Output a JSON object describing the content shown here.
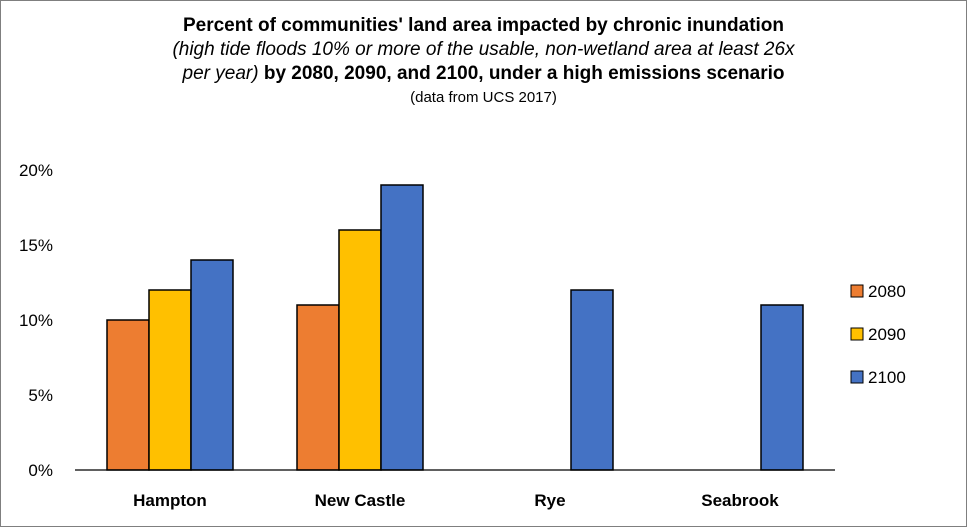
{
  "chart_data": {
    "type": "bar",
    "title_line1": "Percent of communities' land area impacted by chronic inundation",
    "title_line2_italic": "(high tide floods 10% or more of the usable, non-wetland area at least 26x",
    "title_line3_italic": "per year)",
    "title_line3_bold": " by 2080, 2090, and 2100, under a high emissions scenario",
    "subtitle": "(data from UCS 2017)",
    "categories": [
      "Hampton",
      "New Castle",
      "Rye",
      "Seabrook"
    ],
    "series": [
      {
        "name": "2080",
        "color": "#ed7d31",
        "values": [
          10,
          11,
          null,
          null
        ]
      },
      {
        "name": "2090",
        "color": "#ffc000",
        "values": [
          12,
          16,
          null,
          null
        ]
      },
      {
        "name": "2100",
        "color": "#4472c4",
        "values": [
          14,
          19,
          12,
          11
        ]
      }
    ],
    "yticks": [
      "0%",
      "5%",
      "10%",
      "15%",
      "20%"
    ],
    "ylim": [
      0,
      20
    ],
    "legend_position": "right",
    "grid": false
  }
}
